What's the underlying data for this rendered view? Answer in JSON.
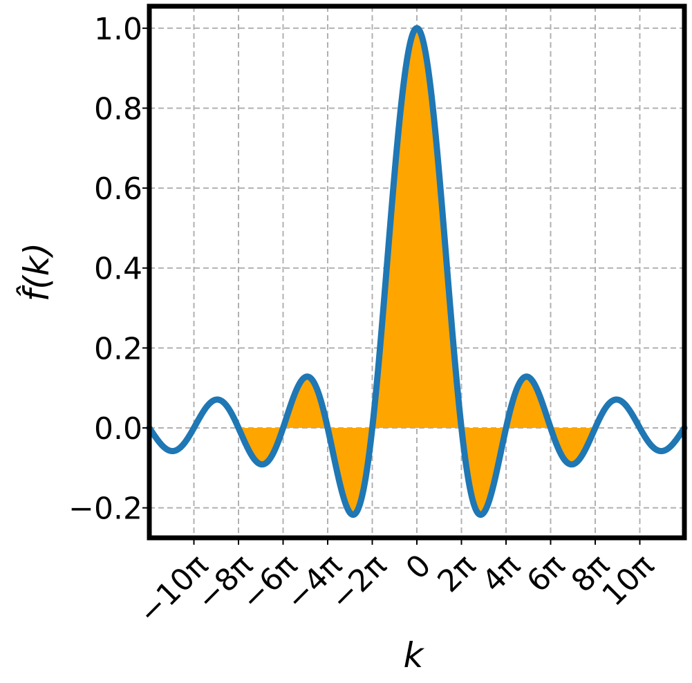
{
  "chart_data": {
    "type": "line",
    "title": "",
    "xlabel": "k",
    "ylabel": "f̂(k)",
    "function": "sin(k/2)/(k/2)",
    "xlim": [
      -37.7,
      37.7
    ],
    "ylim": [
      -0.275,
      1.055
    ],
    "grid": true,
    "line_color": "#1f77b4",
    "fill_color": "#ffa500",
    "fill_between": [
      -25.13,
      25.13
    ],
    "x_ticks": [
      {
        "value": -31.416,
        "label": "−10π"
      },
      {
        "value": -25.133,
        "label": "−8π"
      },
      {
        "value": -18.85,
        "label": "−6π"
      },
      {
        "value": -12.566,
        "label": "−4π"
      },
      {
        "value": -6.283,
        "label": "−2π"
      },
      {
        "value": 0,
        "label": "0"
      },
      {
        "value": 6.283,
        "label": "2π"
      },
      {
        "value": 12.566,
        "label": "4π"
      },
      {
        "value": 18.85,
        "label": "6π"
      },
      {
        "value": 25.133,
        "label": "8π"
      },
      {
        "value": 31.416,
        "label": "10π"
      }
    ],
    "y_ticks": [
      {
        "value": 1.0,
        "label": "1.0"
      },
      {
        "value": 0.8,
        "label": "0.8"
      },
      {
        "value": 0.6,
        "label": "0.6"
      },
      {
        "value": 0.4,
        "label": "0.4"
      },
      {
        "value": 0.2,
        "label": "0.2"
      },
      {
        "value": 0.0,
        "label": "0.0"
      },
      {
        "value": -0.2,
        "label": "−0.2"
      }
    ],
    "key_points": [
      {
        "x": 0,
        "y": 1.0
      },
      {
        "x": -8.99,
        "y": -0.217
      },
      {
        "x": 8.99,
        "y": -0.217
      },
      {
        "x": -15.45,
        "y": 0.128
      },
      {
        "x": 15.45,
        "y": 0.128
      },
      {
        "x": -21.81,
        "y": -0.091
      },
      {
        "x": 21.81,
        "y": -0.091
      },
      {
        "x": -28.13,
        "y": 0.071
      },
      {
        "x": 28.13,
        "y": 0.071
      },
      {
        "x": -34.44,
        "y": -0.058
      },
      {
        "x": 34.44,
        "y": -0.058
      }
    ]
  }
}
